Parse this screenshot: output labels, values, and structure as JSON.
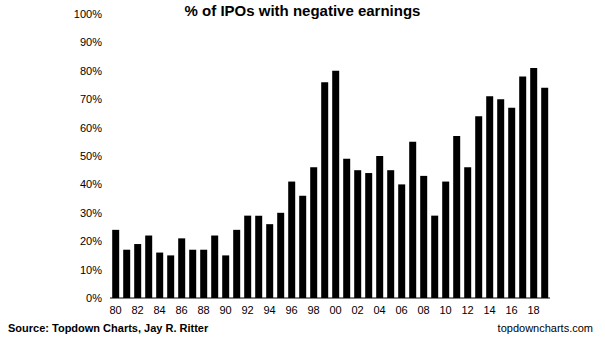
{
  "chart_data": {
    "type": "bar",
    "title": "% of IPOs with negative earnings",
    "categories": [
      "80",
      null,
      "82",
      null,
      "84",
      null,
      "86",
      null,
      "88",
      null,
      "90",
      null,
      "92",
      null,
      "94",
      null,
      "96",
      null,
      "98",
      null,
      "00",
      null,
      "02",
      null,
      "04",
      null,
      "06",
      null,
      "08",
      null,
      "10",
      null,
      "12",
      null,
      "14",
      null,
      "16",
      null,
      "18",
      null
    ],
    "values": [
      24,
      17,
      19,
      22,
      16,
      15,
      21,
      17,
      17,
      22,
      15,
      24,
      29,
      29,
      26,
      30,
      41,
      36,
      46,
      76,
      80,
      49,
      45,
      44,
      50,
      45,
      40,
      55,
      43,
      29,
      41,
      57,
      46,
      64,
      71,
      70,
      67,
      78,
      81,
      74
    ],
    "color": "#000000",
    "ylim": [
      0,
      100
    ],
    "yticks": [
      {
        "value": 0,
        "label": "0%"
      },
      {
        "value": 10,
        "label": "10%"
      },
      {
        "value": 20,
        "label": "20%"
      },
      {
        "value": 30,
        "label": "30%"
      },
      {
        "value": 40,
        "label": "40%"
      },
      {
        "value": 50,
        "label": "50%"
      },
      {
        "value": 60,
        "label": "60%"
      },
      {
        "value": 70,
        "label": "70%"
      },
      {
        "value": 80,
        "label": "80%"
      },
      {
        "value": 90,
        "label": "90%"
      },
      {
        "value": 100,
        "label": "100%"
      }
    ],
    "grid": false,
    "annotations": [
      "Source: Topdown Charts, Jay R. Ritter",
      "topdowncharts.com"
    ]
  }
}
